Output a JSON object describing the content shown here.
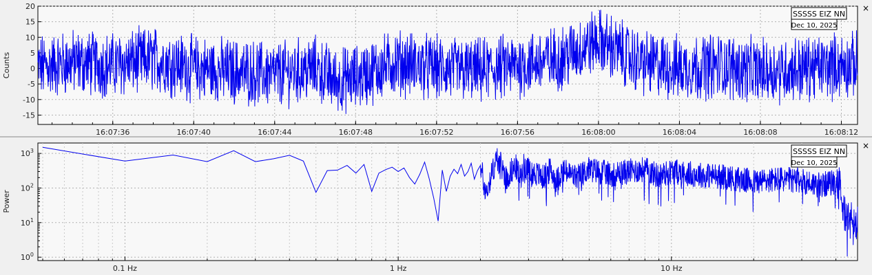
{
  "panels": [
    {
      "station_label": "SSSSS EIZ NN",
      "date_label": "Dec 10, 2025",
      "close_glyph": "×",
      "close_icon": "close-icon"
    },
    {
      "station_label": "SSSSS EIZ NN",
      "date_label": "Dec 10, 2025",
      "close_glyph": "×",
      "close_icon": "close-icon"
    }
  ],
  "colors": {
    "trace": "#0000ee",
    "background": "#f0f0f0",
    "plot_bg": "#f8f8f8",
    "grid": "#b0b0b0",
    "separator": "#888888"
  },
  "chart_data": [
    {
      "type": "line",
      "ylabel": "Counts",
      "xlabel": "",
      "title": "",
      "x_range": [
        "16:07:32.3",
        "16:08:12.8"
      ],
      "ylim": [
        -18,
        20
      ],
      "y_ticks": [
        -15,
        -10,
        -5,
        0,
        5,
        10,
        15,
        20
      ],
      "x_ticks": [
        "16:07:36",
        "16:07:40",
        "16:07:44",
        "16:07:48",
        "16:07:52",
        "16:07:56",
        "16:08:00",
        "16:08:04",
        "16:08:08",
        "16:08:12"
      ],
      "grid": true,
      "series": [
        {
          "x": [
            "16:07:32",
            "16:07:34",
            "16:07:36",
            "16:07:38",
            "16:07:40",
            "16:07:42",
            "16:07:44",
            "16:07:46",
            "16:07:47",
            "16:07:48",
            "16:07:50",
            "16:07:52",
            "16:07:54",
            "16:07:56",
            "16:07:58",
            "16:08:00",
            "16:08:02",
            "16:08:04",
            "16:08:06",
            "16:08:08",
            "16:08:10",
            "16:08:12"
          ],
          "values": [
            0,
            2,
            1,
            3,
            0,
            -1,
            -2,
            0,
            -4,
            -3,
            2,
            0,
            -1,
            1,
            3,
            9,
            2,
            0,
            1,
            -1,
            0,
            1
          ]
        }
      ]
    },
    {
      "type": "line",
      "ylabel": "Power",
      "xlabel": "",
      "title": "",
      "xscale": "log",
      "yscale": "log",
      "xlim": [
        0.048,
        48
      ],
      "ylim": [
        0.8,
        2000
      ],
      "x_ticks": [
        "0.1 Hz",
        "1 Hz",
        "10 Hz"
      ],
      "y_ticks": [
        "10^0",
        "10^1",
        "10^2",
        "10^3"
      ],
      "grid": true,
      "series": [
        {
          "x": [
            0.05,
            0.1,
            0.15,
            0.2,
            0.25,
            0.3,
            0.35,
            0.4,
            0.45,
            0.5,
            0.55,
            0.6,
            0.65,
            0.7,
            0.75,
            0.8,
            0.85,
            0.9,
            0.95,
            1.0,
            1.05,
            1.1,
            1.15,
            1.2,
            1.25,
            1.3,
            1.35,
            1.4,
            1.45,
            1.5,
            1.55,
            1.6,
            1.65,
            1.7,
            1.75,
            1.8,
            1.85,
            1.9,
            1.95,
            2.0,
            2.1,
            2.2,
            2.3,
            2.4,
            2.5,
            2.6,
            2.7,
            2.8,
            2.9,
            3.0,
            3.2,
            3.4,
            3.6,
            3.8,
            4.0,
            4.5,
            5,
            6,
            7,
            8,
            9,
            10,
            12,
            15,
            20,
            25,
            30,
            35,
            40,
            44,
            47
          ],
          "values": [
            1500,
            600,
            900,
            580,
            1200,
            580,
            700,
            880,
            600,
            75,
            320,
            330,
            450,
            270,
            480,
            80,
            270,
            340,
            400,
            300,
            380,
            200,
            130,
            250,
            560,
            180,
            50,
            11,
            330,
            80,
            220,
            350,
            260,
            480,
            220,
            300,
            520,
            180,
            320,
            450,
            70,
            260,
            700,
            400,
            180,
            330,
            400,
            200,
            500,
            300,
            260,
            200,
            330,
            160,
            320,
            200,
            350,
            250,
            300,
            350,
            220,
            300,
            250,
            220,
            150,
            180,
            160,
            120,
            150,
            15,
            8
          ]
        }
      ]
    }
  ]
}
